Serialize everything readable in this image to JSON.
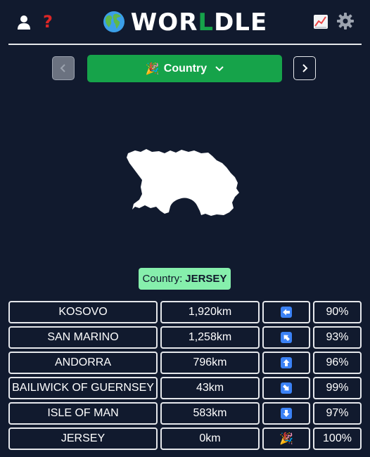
{
  "header": {
    "title_prefix": "WOR",
    "title_highlight": "L",
    "title_suffix": "DLE",
    "icons": {
      "user": "user-icon",
      "help": "question-icon",
      "stats": "chart-icon",
      "settings": "gear-icon",
      "globe": "globe-icon"
    },
    "help_glyph": "?"
  },
  "controls": {
    "prev_icon": "chevron-left-icon",
    "next_icon": "chevron-right-icon",
    "mode_label": "Country",
    "mode_emoji": "🎉",
    "mode_icon": "chevron-down-icon"
  },
  "answer": {
    "prefix": "Country:",
    "value": "JERSEY"
  },
  "guesses": [
    {
      "name": "KOSOVO",
      "distance": "1,920km",
      "direction": "left",
      "percent": "90%"
    },
    {
      "name": "SAN MARINO",
      "distance": "1,258km",
      "direction": "up-left",
      "percent": "93%"
    },
    {
      "name": "ANDORRA",
      "distance": "796km",
      "direction": "up",
      "percent": "96%"
    },
    {
      "name": "BAILIWICK OF GUERNSEY",
      "distance": "43km",
      "direction": "down-right",
      "percent": "99%"
    },
    {
      "name": "ISLE OF MAN",
      "distance": "583km",
      "direction": "down",
      "percent": "97%"
    },
    {
      "name": "JERSEY",
      "distance": "0km",
      "direction": "correct",
      "direction_emoji": "🎉",
      "percent": "100%"
    }
  ],
  "colors": {
    "background": "#111a2e",
    "accent_green": "#16a34a",
    "answer_green": "#86efac",
    "arrow_blue": "#3b82f6",
    "help_red": "#dc2626"
  }
}
